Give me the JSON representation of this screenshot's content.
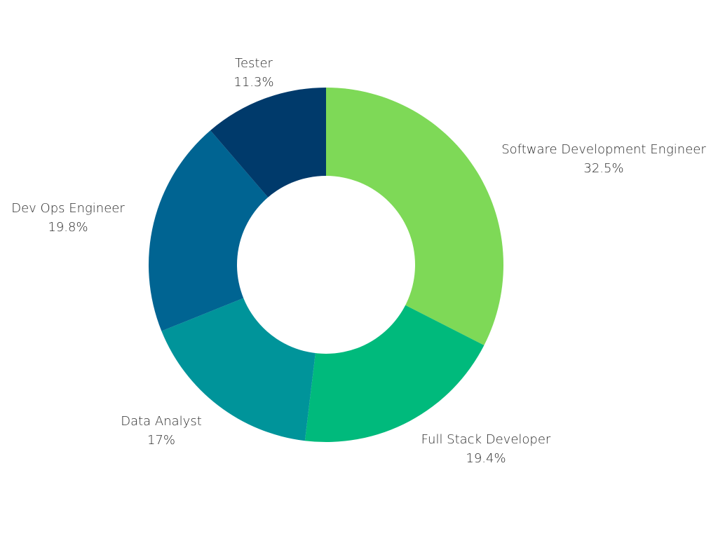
{
  "chart_data": {
    "type": "pie",
    "variant": "donut",
    "title": "",
    "legend": "none",
    "slices": [
      {
        "label": "Software Development Engineer",
        "value_label": "32.5%",
        "value": 32.5,
        "color": "#7ED957"
      },
      {
        "label": "Full Stack Developer",
        "value_label": "19.4%",
        "value": 19.4,
        "color": "#00BA7C"
      },
      {
        "label": "Data Analyst",
        "value_label": "17%",
        "value": 17,
        "color": "#00949A"
      },
      {
        "label": "Dev Ops Engineer",
        "value_label": "19.8%",
        "value": 19.8,
        "color": "#006492"
      },
      {
        "label": "Tester",
        "value_label": "11.3%",
        "value": 11.3,
        "color": "#003A6B"
      }
    ]
  }
}
